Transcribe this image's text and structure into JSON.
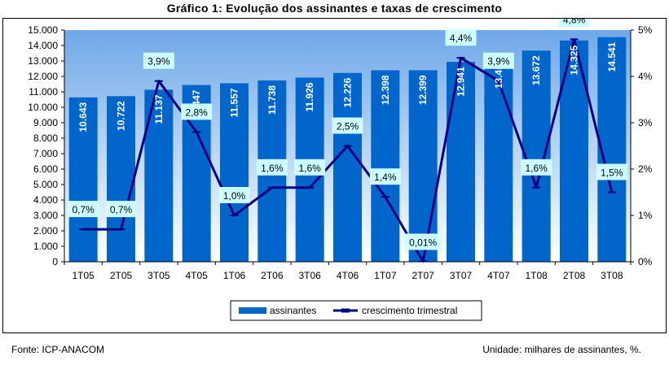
{
  "title": "Gráfico 1: Evolução dos assinantes e taxas de crescimento",
  "footer": {
    "source": "Fonte: ICP-ANACOM",
    "unit": "Unidade: milhares de assinantes, %."
  },
  "colors": {
    "bar": "#0066CC",
    "line": "#000080",
    "label_box": "#CCFFFF",
    "plot_bg_top": "#6FA8E8",
    "plot_bg_bottom": "#FFFFFF"
  },
  "chart_data": {
    "type": "bar",
    "categories": [
      "1T05",
      "2T05",
      "3T05",
      "4T05",
      "1T06",
      "2T06",
      "3T06",
      "4T06",
      "1T07",
      "2T07",
      "3T07",
      "4T07",
      "1T08",
      "2T08",
      "3T08"
    ],
    "series": [
      {
        "name": "assinantes",
        "type": "bar",
        "axis": "left",
        "values": [
          10643,
          10722,
          11137,
          11447,
          11557,
          11738,
          11926,
          12226,
          12398,
          12399,
          12941,
          13451,
          13672,
          14325,
          14541
        ],
        "labels": [
          "10.643",
          "10.722",
          "11.137",
          "11.447",
          "11.557",
          "11.738",
          "11.926",
          "12.226",
          "12.398",
          "12.399",
          "12.941",
          "13.451",
          "13.672",
          "14.325",
          "14.541"
        ]
      },
      {
        "name": "crescimento trimestral",
        "type": "line",
        "axis": "right",
        "values": [
          0.7,
          0.7,
          3.9,
          2.8,
          1.0,
          1.6,
          1.6,
          2.5,
          1.4,
          0.01,
          4.4,
          3.9,
          1.6,
          4.8,
          1.5
        ],
        "labels": [
          "0,7%",
          "0,7%",
          "3,9%",
          "2,8%",
          "1,0%",
          "1,6%",
          "1,6%",
          "2,5%",
          "1,4%",
          "0,01%",
          "4,4%",
          "3,9%",
          "1,6%",
          "4,8%",
          "1,5%"
        ]
      }
    ],
    "left_axis": {
      "ylim": [
        0,
        15000
      ],
      "ticks": [
        "0",
        "1.000",
        "2.000",
        "3.000",
        "4.000",
        "5.000",
        "6.000",
        "7.000",
        "8.000",
        "9.000",
        "10.000",
        "11.000",
        "12.000",
        "13.000",
        "14.000",
        "15.000"
      ]
    },
    "right_axis": {
      "ylim": [
        0,
        5
      ],
      "ticks": [
        "0%",
        "1%",
        "2%",
        "3%",
        "4%",
        "5%"
      ]
    },
    "legend": {
      "position": "bottom",
      "entries": [
        "assinantes",
        "crescimento trimestral"
      ]
    },
    "grid": false
  }
}
